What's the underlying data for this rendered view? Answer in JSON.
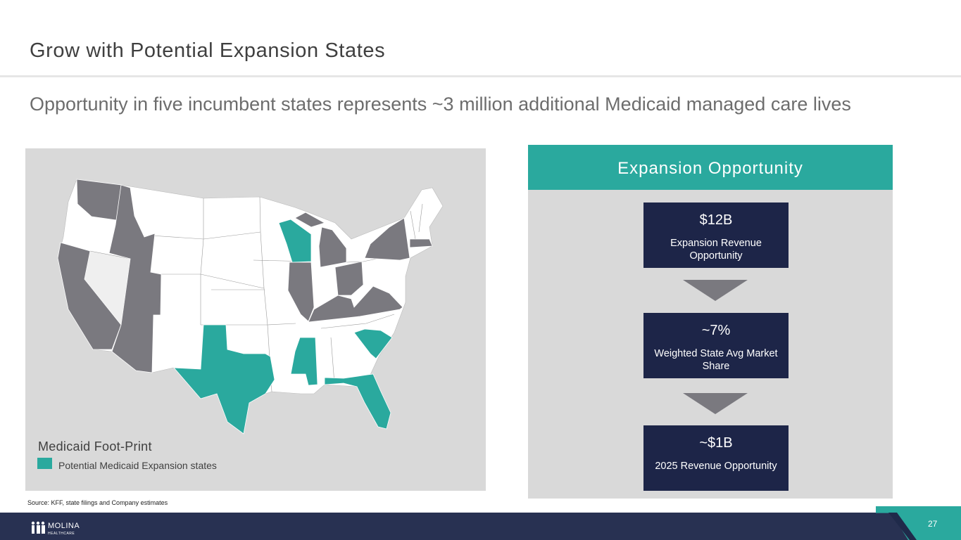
{
  "title": "Grow with Potential Expansion States",
  "subtitle": "Opportunity in five incumbent states represents ~3 million additional Medicaid managed care lives",
  "map": {
    "legend_title": "Medicaid Foot-Print",
    "legend_label": "Potential Medicaid Expansion states",
    "colors": {
      "expansion": "#2aa99e",
      "footprint": "#7a797f",
      "other": "#ffffff",
      "background": "#d9d9d9"
    }
  },
  "source": "Source: KFF, state filings and Company estimates",
  "expansion": {
    "header": "Expansion Opportunity",
    "boxes": [
      {
        "value": "$12B",
        "label": "Expansion Revenue Opportunity"
      },
      {
        "value": "~7%",
        "label": "Weighted State Avg Market Share"
      },
      {
        "value": "~$1B",
        "label": "2025 Revenue Opportunity"
      }
    ]
  },
  "footer": {
    "logo_text": "MOLINA",
    "logo_sub": "HEALTHCARE",
    "page_number": "27"
  }
}
